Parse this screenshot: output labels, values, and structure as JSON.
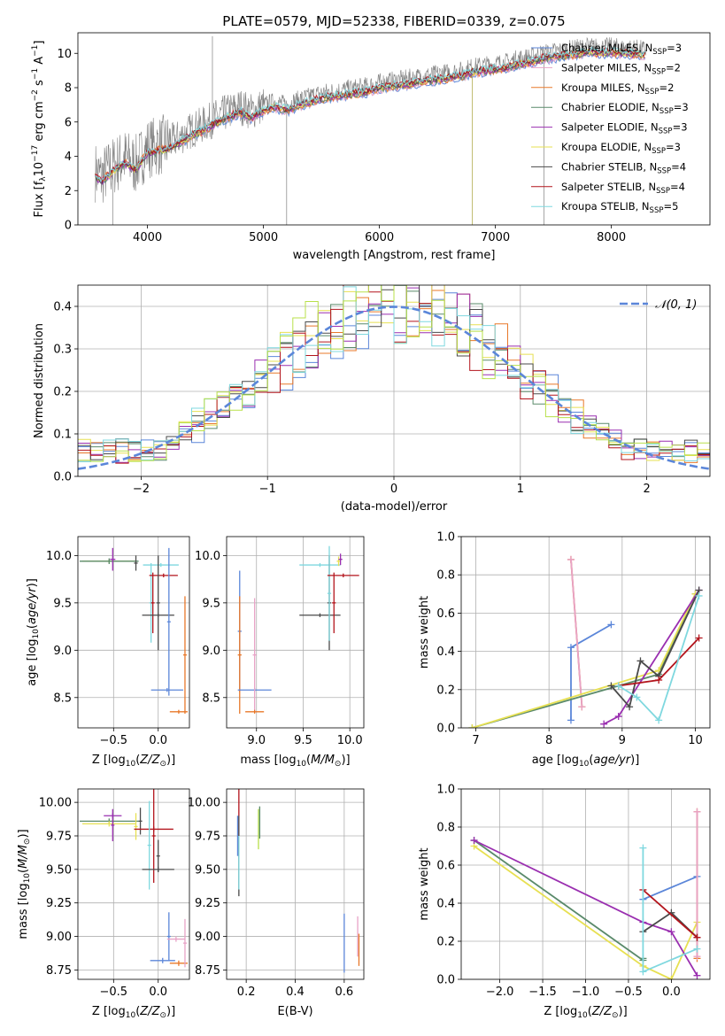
{
  "figure": {
    "title": "PLATE=0579, MJD=52338, FIBERID=0339, z=0.075"
  },
  "colors": {
    "chabrier_miles": "#5b86d9",
    "salpeter_miles": "#e8a3c7",
    "kroupa_miles": "#e8782a",
    "chabrier_elodie": "#5a8a6a",
    "salpeter_elodie": "#9a2fb0",
    "kroupa_elodie": "#e7e052",
    "chabrier_stelib": "#4a4a4a",
    "salpeter_stelib": "#b3141c",
    "kroupa_stelib": "#7fd8df",
    "elodie_lime": "#b8e04a",
    "data_grey": "#808080",
    "gaussian": "#5b86d9"
  },
  "chart_data": [
    {
      "id": "spectrum",
      "type": "line",
      "title": "PLATE=0579, MJD=52338, FIBERID=0339, z=0.075",
      "xlabel": "wavelength [Angstrom, rest frame]",
      "ylabel": "Flux [f_λ 10^-17 erg cm^-2 s^-1 A^-1]",
      "xlim": [
        3400,
        8850
      ],
      "ylim": [
        0,
        11.2
      ],
      "xticks": [
        4000,
        5000,
        6000,
        7000,
        8000
      ],
      "yticks": [
        0,
        2,
        4,
        6,
        8,
        10
      ],
      "grid": false,
      "legend_position": "right",
      "legend": [
        "Chabrier MILES, N_SSP=3",
        "Salpeter MILES, N_SSP=2",
        "Kroupa MILES, N_SSP=2",
        "Chabrier ELODIE, N_SSP=3",
        "Salpeter ELODIE, N_SSP=3",
        "Kroupa ELODIE, N_SSP=3",
        "Chabrier STELIB, N_SSP=4",
        "Salpeter STELIB, N_SSP=4",
        "Kroupa STELIB, N_SSP=5"
      ],
      "continuum": {
        "x": [
          3550,
          3600,
          3700,
          3800,
          3900,
          4000,
          4100,
          4200,
          4300,
          4400,
          4500,
          4600,
          4700,
          4800,
          4900,
          5000,
          5100,
          5200,
          5300,
          5400,
          5500,
          5600,
          5700,
          5800,
          5900,
          6000,
          6100,
          6200,
          6300,
          6400,
          6500,
          6600,
          6700,
          6800,
          6900,
          7000,
          7100,
          7200,
          7300,
          7400,
          7500,
          7600,
          7700,
          7800,
          7900,
          8000,
          8100,
          8200,
          8300
        ],
        "y": [
          3.1,
          2.8,
          3.4,
          3.9,
          3.5,
          4.5,
          4.6,
          4.8,
          5.2,
          5.6,
          5.9,
          6.3,
          6.6,
          6.9,
          6.6,
          7.0,
          7.2,
          7.0,
          7.3,
          7.5,
          7.7,
          7.8,
          7.9,
          8.0,
          8.1,
          8.3,
          8.4,
          8.5,
          8.6,
          8.7,
          8.8,
          8.9,
          9.0,
          9.2,
          9.3,
          9.4,
          9.5,
          9.7,
          9.8,
          10.0,
          10.1,
          10.2,
          10.3,
          10.4,
          10.35,
          10.4,
          10.3,
          10.3,
          10.2
        ]
      }
    },
    {
      "id": "residuals",
      "type": "line",
      "xlabel": "(data-model)/error",
      "ylabel": "Normed distribution",
      "xlim": [
        -2.5,
        2.5
      ],
      "ylim": [
        0,
        0.45
      ],
      "xticks": [
        -2,
        -1,
        0,
        1,
        2
      ],
      "yticks": [
        0.0,
        0.1,
        0.2,
        0.3,
        0.4
      ],
      "grid": true,
      "legend_position": "top-right",
      "legend": [
        "𝒩(0, 1)"
      ],
      "bin_width": 0.1
    },
    {
      "id": "age_vs_Z",
      "type": "scatter",
      "xlabel": "Z [log10(Z/Z⊙)]",
      "ylabel": "age [log10(age/yr)]",
      "xlim": [
        -0.9,
        0.35
      ],
      "ylim": [
        8.18,
        10.2
      ],
      "xticks": [
        -0.5,
        0.0
      ],
      "yticks": [
        8.5,
        9.0,
        9.5,
        10.0
      ],
      "grid": true,
      "points": [
        {
          "model": "kroupa_elodie",
          "x": -0.55,
          "y": 9.94,
          "xerr": 0.3,
          "yerr": 0.02
        },
        {
          "model": "chabrier_elodie",
          "x": -0.55,
          "y": 9.94,
          "xerr": 0.33,
          "yerr": 0.03
        },
        {
          "model": "salpeter_elodie",
          "x": -0.51,
          "y": 9.96,
          "xerr": 0.03,
          "yerr": 0.12
        },
        {
          "model": "chabrier_stelib",
          "x": -0.25,
          "y": 9.92,
          "xerr": 0.02,
          "yerr": 0.08
        },
        {
          "model": "kroupa_stelib",
          "x": 0.03,
          "y": 9.9,
          "xerr": 0.2,
          "yerr": 0.02
        },
        {
          "model": "kroupa_stelib",
          "x": -0.08,
          "y": 9.5,
          "xerr": 0.02,
          "yerr": 0.42
        },
        {
          "model": "salpeter_stelib",
          "x": 0.06,
          "y": 9.79,
          "xerr": 0.16,
          "yerr": 0.02
        },
        {
          "model": "salpeter_stelib",
          "x": -0.06,
          "y": 9.5,
          "xerr": 0.02,
          "yerr": 0.32
        },
        {
          "model": "chabrier_stelib",
          "x": 0.0,
          "y": 9.37,
          "xerr": 0.18,
          "yerr": 0.02
        },
        {
          "model": "chabrier_stelib",
          "x": 0.0,
          "y": 9.5,
          "xerr": 0.02,
          "yerr": 0.5
        },
        {
          "model": "chabrier_miles",
          "x": 0.1,
          "y": 8.58,
          "xerr": 0.18,
          "yerr": 0.02
        },
        {
          "model": "chabrier_miles",
          "x": 0.12,
          "y": 9.3,
          "xerr": 0.02,
          "yerr": 0.78
        },
        {
          "model": "kroupa_miles",
          "x": 0.23,
          "y": 8.35,
          "xerr": 0.1,
          "yerr": 0.02
        },
        {
          "model": "kroupa_miles",
          "x": 0.3,
          "y": 8.95,
          "xerr": 0.02,
          "yerr": 0.62
        }
      ]
    },
    {
      "id": "age_vs_mass",
      "type": "scatter",
      "xlabel": "mass [log10(M/M⊙)]",
      "ylabel": "",
      "xlim": [
        8.68,
        10.15
      ],
      "ylim": [
        8.18,
        10.2
      ],
      "xticks": [
        9.0,
        9.5,
        10.0
      ],
      "yticks": [
        8.5,
        9.0,
        9.5,
        10.0
      ],
      "grid": true,
      "points": [
        {
          "model": "chabrier_miles",
          "x": 8.82,
          "y": 9.2,
          "xerr": 0.02,
          "yerr": 0.64
        },
        {
          "model": "kroupa_miles",
          "x": 8.82,
          "y": 8.95,
          "xerr": 0.02,
          "yerr": 0.62
        },
        {
          "model": "chabrier_miles",
          "x": 8.98,
          "y": 8.58,
          "xerr": 0.18,
          "yerr": 0.02
        },
        {
          "model": "salpeter_miles",
          "x": 8.98,
          "y": 8.95,
          "xerr": 0.02,
          "yerr": 0.6
        },
        {
          "model": "kroupa_miles",
          "x": 8.98,
          "y": 8.35,
          "xerr": 0.1,
          "yerr": 0.02
        },
        {
          "model": "chabrier_stelib",
          "x": 9.68,
          "y": 9.37,
          "xerr": 0.22,
          "yerr": 0.02
        },
        {
          "model": "kroupa_stelib",
          "x": 9.68,
          "y": 9.9,
          "xerr": 0.22,
          "yerr": 0.02
        },
        {
          "model": "chabrier_stelib",
          "x": 9.78,
          "y": 9.5,
          "xerr": 0.02,
          "yerr": 0.5
        },
        {
          "model": "kroupa_stelib",
          "x": 9.78,
          "y": 9.6,
          "xerr": 0.02,
          "yerr": 0.5
        },
        {
          "model": "salpeter_stelib",
          "x": 9.83,
          "y": 9.5,
          "xerr": 0.02,
          "yerr": 0.32
        },
        {
          "model": "salpeter_stelib",
          "x": 9.93,
          "y": 9.79,
          "xerr": 0.17,
          "yerr": 0.02
        },
        {
          "model": "kroupa_elodie",
          "x": 9.88,
          "y": 9.94,
          "xerr": 0.02,
          "yerr": 0.05
        },
        {
          "model": "salpeter_elodie",
          "x": 9.9,
          "y": 9.96,
          "xerr": 0.02,
          "yerr": 0.06
        }
      ]
    },
    {
      "id": "weight_vs_age",
      "type": "line",
      "xlabel": "age [log10(age/yr)]",
      "ylabel": "mass weight",
      "xlim": [
        6.8,
        10.2
      ],
      "ylim": [
        0,
        1.0
      ],
      "xticks": [
        7,
        8,
        9,
        10
      ],
      "yticks": [
        0.0,
        0.2,
        0.4,
        0.6,
        0.8,
        1.0
      ],
      "grid": true,
      "series": [
        {
          "model": "chabrier_miles",
          "x": [
            8.3,
            8.3,
            8.85
          ],
          "y": [
            0.04,
            0.42,
            0.54
          ]
        },
        {
          "model": "kroupa_miles",
          "x": [
            8.3,
            8.45
          ],
          "y": [
            0.88,
            0.11
          ]
        },
        {
          "model": "salpeter_miles",
          "x": [
            8.3,
            8.45
          ],
          "y": [
            0.88,
            0.11
          ]
        },
        {
          "model": "chabrier_elodie",
          "x": [
            6.95,
            9.5,
            10.0
          ],
          "y": [
            0.0,
            0.28,
            0.7
          ]
        },
        {
          "model": "kroupa_elodie",
          "x": [
            6.95,
            9.5,
            10.0
          ],
          "y": [
            0.0,
            0.3,
            0.7
          ]
        },
        {
          "model": "salpeter_elodie",
          "x": [
            8.75,
            8.95,
            10.05
          ],
          "y": [
            0.02,
            0.06,
            0.72
          ]
        },
        {
          "model": "chabrier_stelib",
          "x": [
            8.85,
            9.1,
            9.25,
            9.5,
            10.05
          ],
          "y": [
            0.22,
            0.11,
            0.35,
            0.27,
            0.72
          ]
        },
        {
          "model": "salpeter_stelib",
          "x": [
            8.95,
            9.5,
            10.05
          ],
          "y": [
            0.22,
            0.25,
            0.47
          ]
        },
        {
          "model": "kroupa_stelib",
          "x": [
            8.95,
            9.2,
            9.5,
            10.05
          ],
          "y": [
            0.22,
            0.16,
            0.04,
            0.69
          ]
        }
      ]
    },
    {
      "id": "mass_vs_Z",
      "type": "scatter",
      "xlabel": "Z [log10(Z/Z⊙)]",
      "ylabel": "mass [log10(M/M⊙)]",
      "xlim": [
        -0.9,
        0.35
      ],
      "ylim": [
        8.68,
        10.1
      ],
      "xticks": [
        -0.5,
        0.0
      ],
      "yticks": [
        8.75,
        9.0,
        9.25,
        9.5,
        9.75,
        10.0
      ],
      "grid": true,
      "points": [
        {
          "model": "chabrier_elodie",
          "x": -0.55,
          "y": 9.86,
          "xerr": 0.33,
          "yerr": 0.02
        },
        {
          "model": "kroupa_elodie",
          "x": -0.55,
          "y": 9.84,
          "xerr": 0.3,
          "yerr": 0.02
        },
        {
          "model": "salpeter_elodie",
          "x": -0.51,
          "y": 9.9,
          "xerr": 0.1,
          "yerr": 0.02
        },
        {
          "model": "salpeter_elodie",
          "x": -0.51,
          "y": 9.83,
          "xerr": 0.02,
          "yerr": 0.12
        },
        {
          "model": "kroupa_elodie",
          "x": -0.25,
          "y": 9.82,
          "xerr": 0.02,
          "yerr": 0.1
        },
        {
          "model": "chabrier_stelib",
          "x": -0.2,
          "y": 9.86,
          "xerr": 0.02,
          "yerr": 0.1
        },
        {
          "model": "salpeter_stelib",
          "x": -0.05,
          "y": 9.8,
          "xerr": 0.22,
          "yerr": 0.02
        },
        {
          "model": "salpeter_stelib",
          "x": -0.05,
          "y": 9.75,
          "xerr": 0.02,
          "yerr": 0.35
        },
        {
          "model": "kroupa_stelib",
          "x": -0.1,
          "y": 9.68,
          "xerr": 0.02,
          "yerr": 0.33
        },
        {
          "model": "chabrier_stelib",
          "x": 0.0,
          "y": 9.5,
          "xerr": 0.18,
          "yerr": 0.02
        },
        {
          "model": "chabrier_stelib",
          "x": 0.0,
          "y": 9.6,
          "xerr": 0.02,
          "yerr": 0.12
        },
        {
          "model": "chabrier_miles",
          "x": 0.05,
          "y": 8.82,
          "xerr": 0.14,
          "yerr": 0.02
        },
        {
          "model": "chabrier_miles",
          "x": 0.12,
          "y": 9.0,
          "xerr": 0.02,
          "yerr": 0.18
        },
        {
          "model": "kroupa_miles",
          "x": 0.23,
          "y": 8.8,
          "xerr": 0.1,
          "yerr": 0.02
        },
        {
          "model": "salpeter_miles",
          "x": 0.2,
          "y": 8.98,
          "xerr": 0.1,
          "yerr": 0.02
        },
        {
          "model": "salpeter_miles",
          "x": 0.3,
          "y": 8.95,
          "xerr": 0.02,
          "yerr": 0.18
        }
      ]
    },
    {
      "id": "mass_vs_ebv",
      "type": "scatter",
      "xlabel": "E(B-V)",
      "ylabel": "",
      "xlim": [
        0.12,
        0.68
      ],
      "ylim": [
        8.68,
        10.1
      ],
      "xticks": [
        0.2,
        0.4,
        0.6
      ],
      "yticks": [
        8.75,
        9.0,
        9.25,
        9.5,
        9.75,
        10.0
      ],
      "grid": true,
      "points": [
        {
          "model": "salpeter_stelib",
          "x": 0.17,
          "y": 9.85,
          "xerr": 0.0,
          "yerr": 0.25
        },
        {
          "model": "chabrier_stelib",
          "x": 0.17,
          "y": 9.6,
          "xerr": 0.0,
          "yerr": 0.3
        },
        {
          "model": "kroupa_stelib",
          "x": 0.17,
          "y": 9.55,
          "xerr": 0.0,
          "yerr": 0.2
        },
        {
          "model": "chabrier_miles",
          "x": 0.165,
          "y": 9.75,
          "xerr": 0.0,
          "yerr": 0.15
        },
        {
          "model": "elodie_lime",
          "x": 0.25,
          "y": 9.8,
          "xerr": 0.0,
          "yerr": 0.15
        },
        {
          "model": "chabrier_elodie",
          "x": 0.255,
          "y": 9.85,
          "xerr": 0.0,
          "yerr": 0.12
        },
        {
          "model": "chabrier_miles",
          "x": 0.6,
          "y": 8.95,
          "xerr": 0.0,
          "yerr": 0.22
        },
        {
          "model": "salpeter_miles",
          "x": 0.655,
          "y": 9.0,
          "xerr": 0.0,
          "yerr": 0.15
        },
        {
          "model": "kroupa_miles",
          "x": 0.66,
          "y": 8.9,
          "xerr": 0.0,
          "yerr": 0.12
        }
      ]
    },
    {
      "id": "weight_vs_Z",
      "type": "line",
      "xlabel": "Z [log10(Z/Z⊙)]",
      "ylabel": "mass weight",
      "xlim": [
        -2.45,
        0.45
      ],
      "ylim": [
        0,
        1.0
      ],
      "xticks": [
        -2.0,
        -1.5,
        -1.0,
        -0.5,
        0.0
      ],
      "yticks": [
        0.0,
        0.2,
        0.4,
        0.6,
        0.8,
        1.0
      ],
      "grid": true,
      "series": [
        {
          "model": "chabrier_elodie",
          "x": [
            -2.3,
            -0.33,
            -0.33
          ],
          "y": [
            0.73,
            0.1,
            0.11
          ]
        },
        {
          "model": "kroupa_elodie",
          "x": [
            -2.3,
            -0.33,
            0.0,
            0.3
          ],
          "y": [
            0.7,
            0.07,
            0.0,
            0.3
          ]
        },
        {
          "model": "salpeter_elodie",
          "x": [
            -2.3,
            -0.33,
            0.0,
            0.3
          ],
          "y": [
            0.73,
            0.3,
            0.25,
            0.02
          ]
        },
        {
          "model": "chabrier_miles",
          "x": [
            -0.33,
            0.3
          ],
          "y": [
            0.42,
            0.54
          ]
        },
        {
          "model": "kroupa_miles",
          "x": [
            0.3,
            0.3
          ],
          "y": [
            0.88,
            0.11
          ]
        },
        {
          "model": "salpeter_miles",
          "x": [
            0.3,
            0.3
          ],
          "y": [
            0.88,
            0.12
          ]
        },
        {
          "model": "chabrier_stelib",
          "x": [
            -0.33,
            0.0,
            0.3
          ],
          "y": [
            0.25,
            0.35,
            0.22
          ]
        },
        {
          "model": "salpeter_stelib",
          "x": [
            -0.33,
            0.3
          ],
          "y": [
            0.47,
            0.22
          ]
        },
        {
          "model": "kroupa_stelib",
          "x": [
            -0.33,
            -0.33,
            0.3
          ],
          "y": [
            0.69,
            0.04,
            0.16
          ]
        }
      ]
    }
  ]
}
